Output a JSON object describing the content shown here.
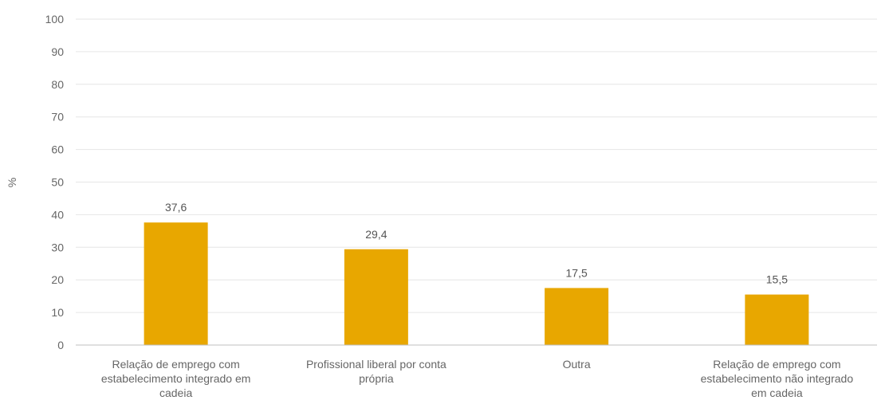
{
  "chart_data": {
    "type": "bar",
    "ylabel": "%",
    "xlabel": "",
    "ylim": [
      0,
      100
    ],
    "yticks": [
      "0",
      "10",
      "20",
      "30",
      "40",
      "50",
      "60",
      "70",
      "80",
      "90",
      "100"
    ],
    "grid": true,
    "bar_color": "#E8A700",
    "categories": [
      [
        "Relação de emprego com",
        "estabelecimento integrado em",
        "cadeia"
      ],
      [
        "Profissional liberal por conta",
        "própria"
      ],
      [
        "Outra"
      ],
      [
        "Relação de emprego com",
        "estabelecimento não integrado",
        "em cadeia"
      ]
    ],
    "values": [
      37.6,
      29.4,
      17.5,
      15.5
    ],
    "value_labels": [
      "37,6",
      "29,4",
      "17,5",
      "15,5"
    ]
  }
}
